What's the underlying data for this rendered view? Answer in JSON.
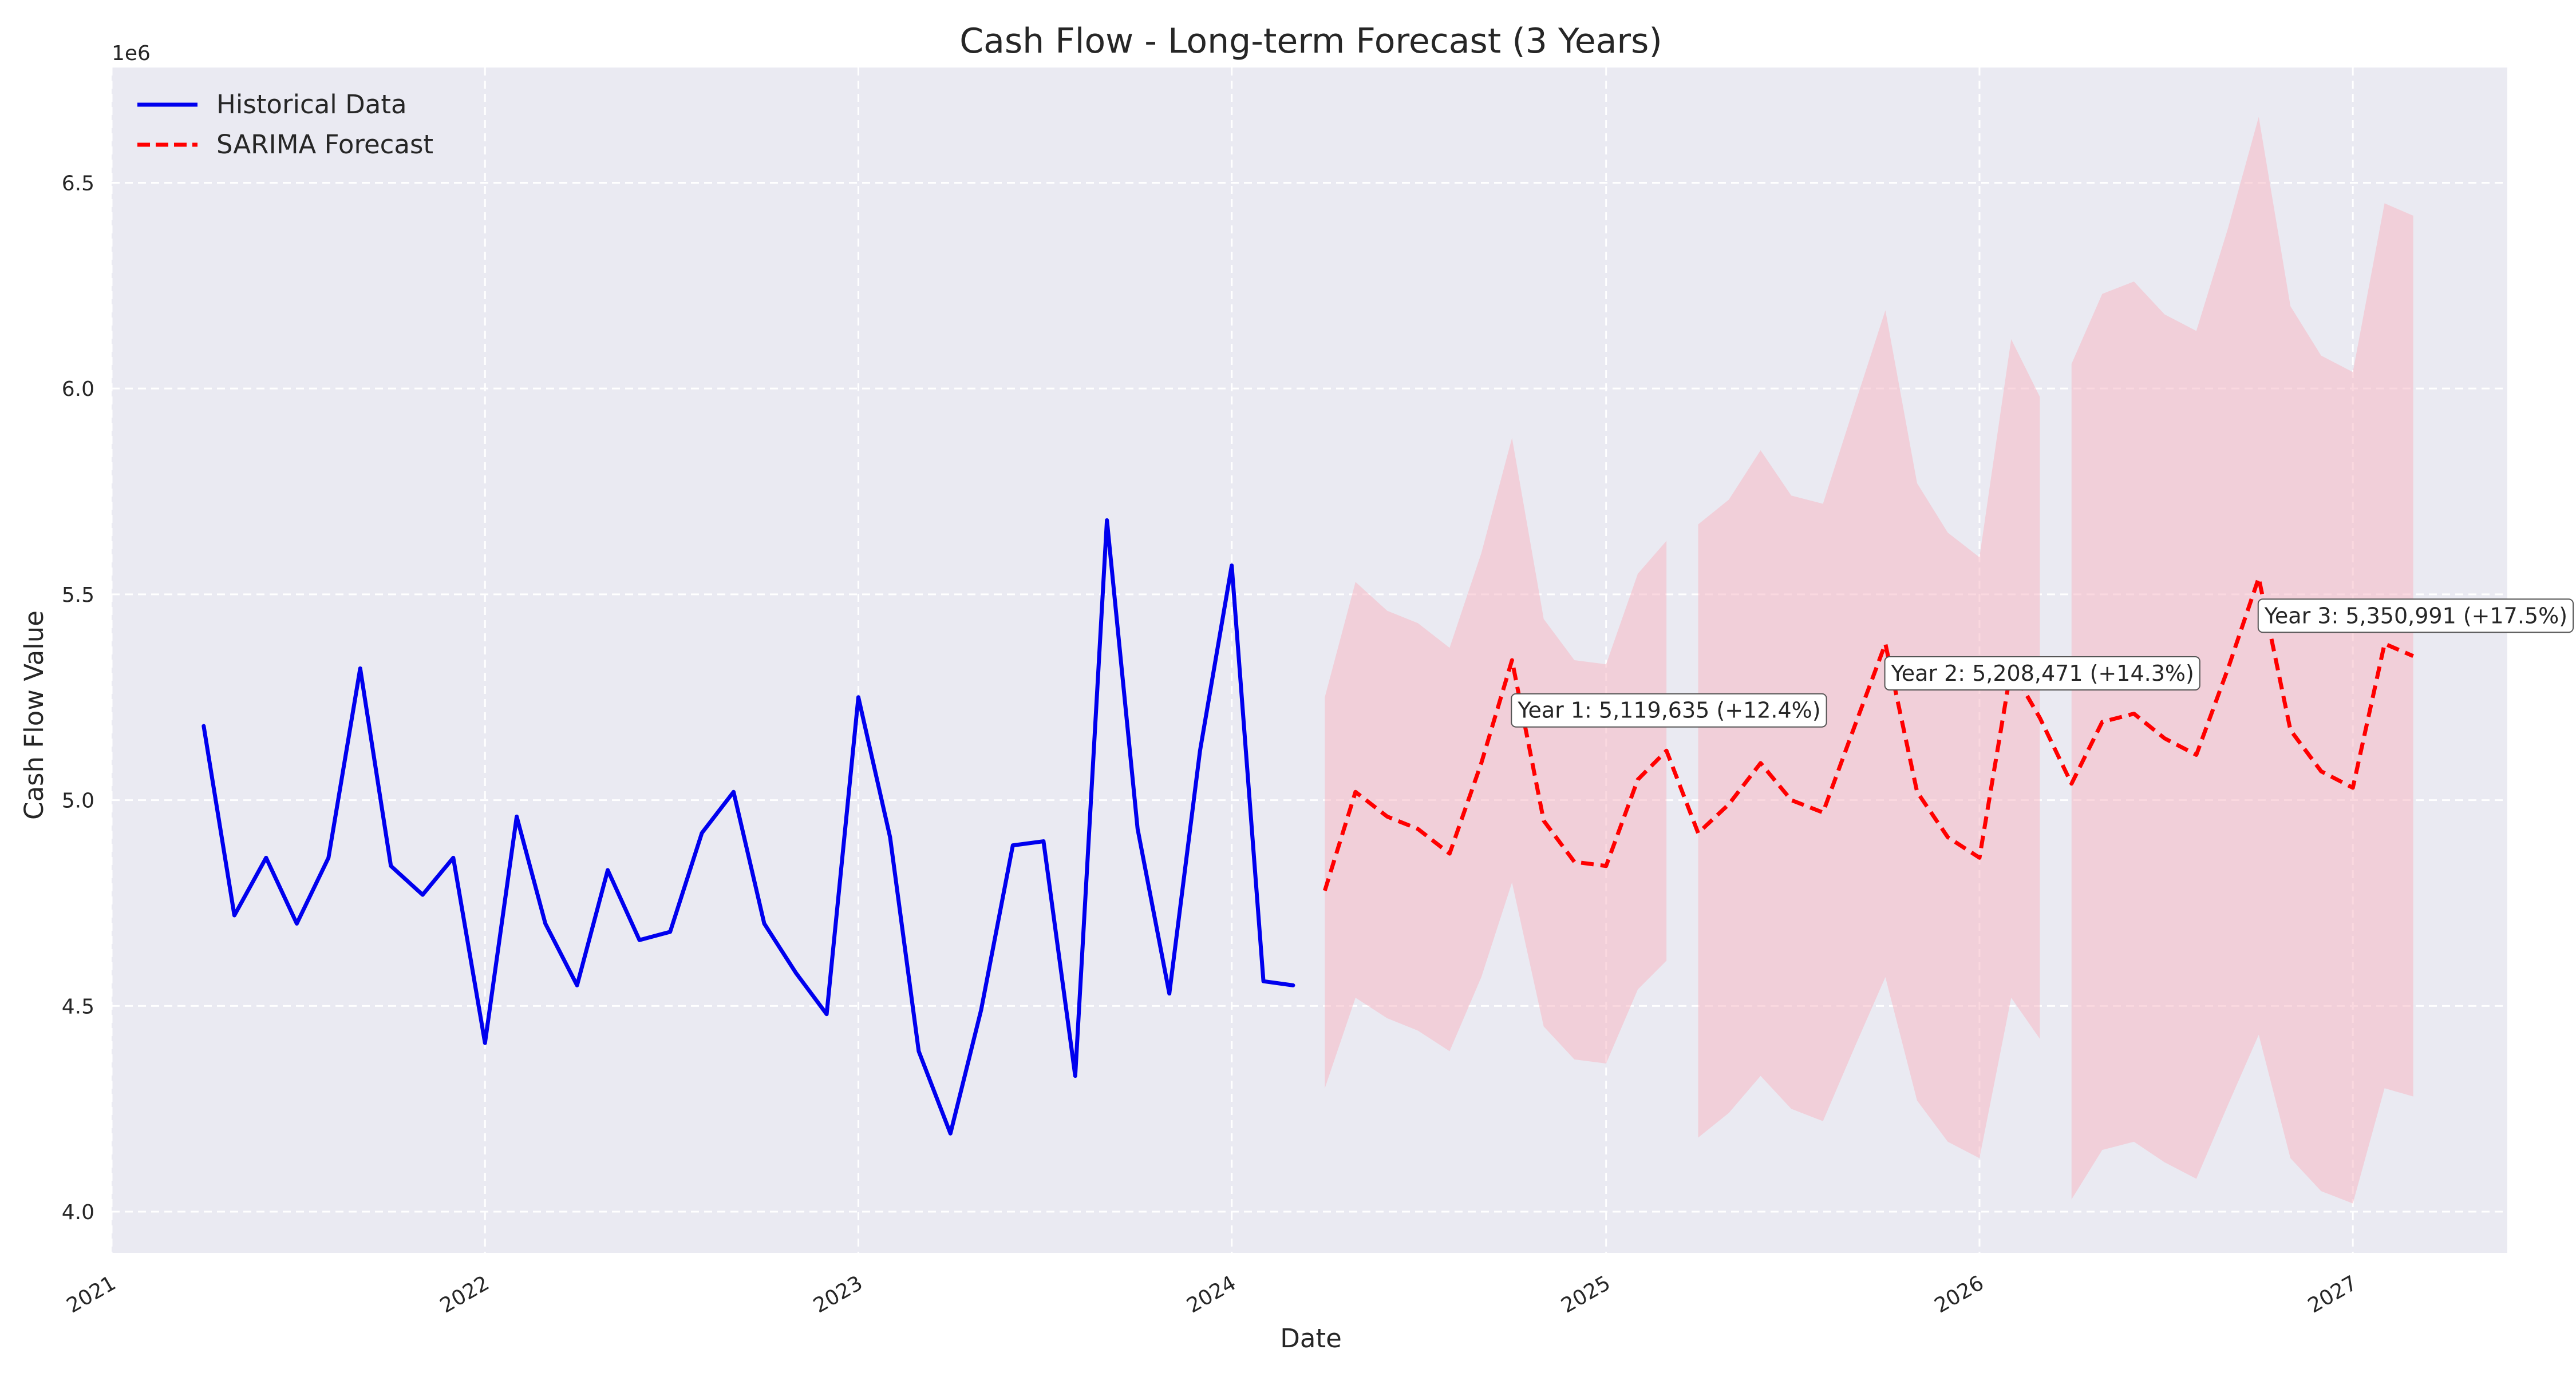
{
  "chart_data": {
    "type": "line",
    "title": "Cash Flow - Long-term Forecast (3 Years)",
    "xlabel": "Date",
    "ylabel": "Cash Flow Value",
    "y_multiplier_label": "1e6",
    "xlim": [
      "2021-01-01",
      "2027-06-01"
    ],
    "ylim": [
      3900000,
      6780000
    ],
    "x_ticks": [
      "2021",
      "2022",
      "2023",
      "2024",
      "2025",
      "2026",
      "2027"
    ],
    "y_ticks": [
      "4.0",
      "4.5",
      "5.0",
      "5.5",
      "6.0",
      "6.5"
    ],
    "y_tick_values": [
      4000000,
      4500000,
      5000000,
      5500000,
      6000000,
      6500000
    ],
    "grid": true,
    "legend_position": "top-left",
    "colors": {
      "historical": "#0000ee",
      "forecast": "#ff0000",
      "interval": "#f5b8c4",
      "plot_bg": "#eaeaf2"
    },
    "series": [
      {
        "name": "Historical Data",
        "style": "solid",
        "x": [
          "2021-04-01",
          "2021-05-01",
          "2021-06-01",
          "2021-07-01",
          "2021-08-01",
          "2021-09-01",
          "2021-10-01",
          "2021-11-01",
          "2021-12-01",
          "2022-01-01",
          "2022-02-01",
          "2022-03-01",
          "2022-04-01",
          "2022-05-01",
          "2022-06-01",
          "2022-07-01",
          "2022-08-01",
          "2022-09-01",
          "2022-10-01",
          "2022-11-01",
          "2022-12-01",
          "2023-01-01",
          "2023-02-01",
          "2023-03-01",
          "2023-04-01",
          "2023-05-01",
          "2023-06-01",
          "2023-07-01",
          "2023-08-01",
          "2023-09-01",
          "2023-10-01",
          "2023-11-01",
          "2023-12-01",
          "2024-01-01",
          "2024-02-01",
          "2024-03-01"
        ],
        "values": [
          5180000,
          4720000,
          4860000,
          4700000,
          4860000,
          5320000,
          4840000,
          4770000,
          4860000,
          4410000,
          4960000,
          4700000,
          4550000,
          4830000,
          4660000,
          4680000,
          4920000,
          5020000,
          4700000,
          4580000,
          4480000,
          5250000,
          4910000,
          4390000,
          4190000,
          4490000,
          4890000,
          4900000,
          4330000,
          5680000,
          4930000,
          4530000,
          5120000,
          5570000,
          4560000,
          4550000
        ]
      },
      {
        "name": "SARIMA Forecast",
        "style": "dashed",
        "x": [
          "2024-04-01",
          "2024-05-01",
          "2024-06-01",
          "2024-07-01",
          "2024-08-01",
          "2024-09-01",
          "2024-10-01",
          "2024-11-01",
          "2024-12-01",
          "2025-01-01",
          "2025-02-01",
          "2025-03-01",
          "2025-04-01",
          "2025-05-01",
          "2025-06-01",
          "2025-07-01",
          "2025-08-01",
          "2025-09-01",
          "2025-10-01",
          "2025-11-01",
          "2025-12-01",
          "2026-01-01",
          "2026-02-01",
          "2026-03-01",
          "2026-04-01",
          "2026-05-01",
          "2026-06-01",
          "2026-07-01",
          "2026-08-01",
          "2026-09-01",
          "2026-10-01",
          "2026-11-01",
          "2026-12-01",
          "2027-01-01",
          "2027-02-01",
          "2027-03-01"
        ],
        "values": [
          4780000,
          5020000,
          4960000,
          4930000,
          4870000,
          5090000,
          5340000,
          4950000,
          4850000,
          4840000,
          5050000,
          5120000,
          4920000,
          4990000,
          5090000,
          5000000,
          4970000,
          5180000,
          5380000,
          5020000,
          4910000,
          4860000,
          5320000,
          5200000,
          5040000,
          5190000,
          5210000,
          5150000,
          5110000,
          5320000,
          5540000,
          5170000,
          5070000,
          5030000,
          5380000,
          5350000
        ]
      }
    ],
    "confidence_interval": {
      "upper": [
        5250000,
        5530000,
        5460000,
        5430000,
        5370000,
        5600000,
        5880000,
        5440000,
        5340000,
        5330000,
        5550000,
        5630000,
        5670000,
        5730000,
        5850000,
        5740000,
        5720000,
        5960000,
        6190000,
        5770000,
        5650000,
        5590000,
        6120000,
        5980000,
        6060000,
        6230000,
        6260000,
        6180000,
        6140000,
        6390000,
        6660000,
        6200000,
        6080000,
        6040000,
        6450000,
        6420000
      ],
      "lower": [
        4300000,
        4520000,
        4470000,
        4440000,
        4390000,
        4570000,
        4800000,
        4450000,
        4370000,
        4360000,
        4540000,
        4610000,
        4180000,
        4240000,
        4330000,
        4250000,
        4220000,
        4400000,
        4570000,
        4270000,
        4170000,
        4130000,
        4520000,
        4420000,
        4030000,
        4150000,
        4170000,
        4120000,
        4080000,
        4260000,
        4430000,
        4130000,
        4050000,
        4020000,
        4300000,
        4280000
      ],
      "segments": [
        [
          0,
          11
        ],
        [
          12,
          23
        ],
        [
          24,
          35
        ]
      ]
    },
    "annotations": [
      {
        "text": "Year 1: 5,119,635 (+12.4%)",
        "x": "2024-10-01",
        "y": 5200000
      },
      {
        "text": "Year 2: 5,208,471 (+14.3%)",
        "x": "2025-10-01",
        "y": 5290000
      },
      {
        "text": "Year 3: 5,350,991 (+17.5%)",
        "x": "2026-10-01",
        "y": 5430000
      }
    ]
  }
}
